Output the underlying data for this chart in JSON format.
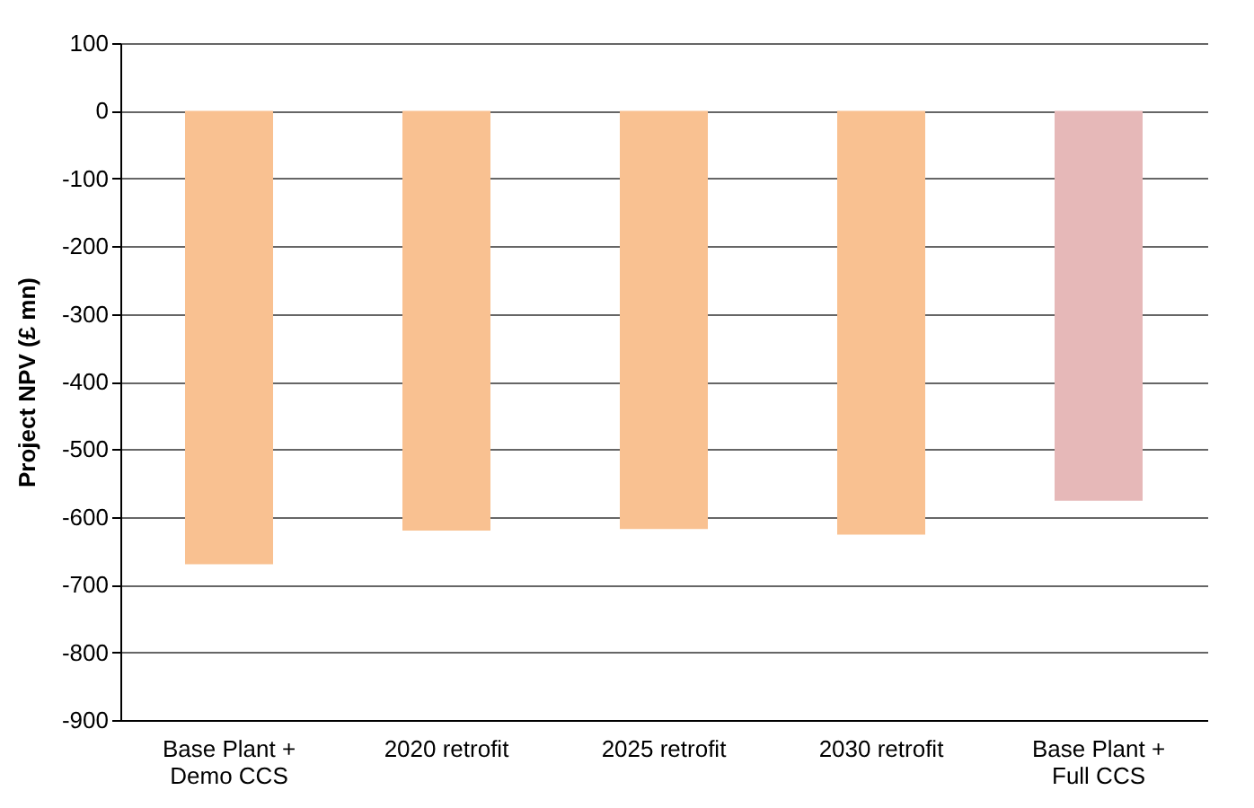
{
  "chart_data": {
    "type": "bar",
    "ylabel": "Project NPV (£ mn)",
    "categories": [
      "Base Plant +\nDemo CCS",
      "2020 retrofit",
      "2025 retrofit",
      "2030 retrofit",
      "Base Plant +\nFull CCS"
    ],
    "values": [
      -670,
      -620,
      -618,
      -626,
      -576
    ],
    "colors": [
      "#f9c191",
      "#f9c191",
      "#f9c191",
      "#f9c191",
      "#e6b8b8"
    ],
    "ylim": [
      -900,
      100
    ],
    "yticks": [
      -900,
      -800,
      -700,
      -600,
      -500,
      -400,
      -300,
      -200,
      -100,
      0,
      100
    ],
    "grid": "y"
  }
}
